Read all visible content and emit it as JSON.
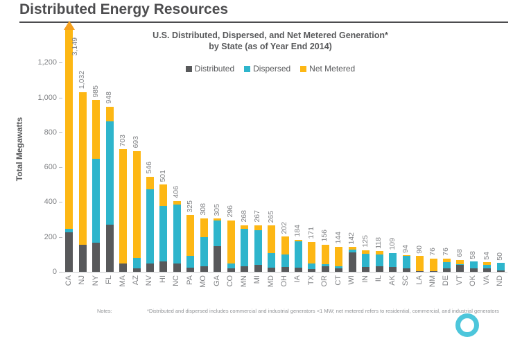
{
  "page": {
    "title": "Distributed Energy Resources",
    "notes_label": "Notes:",
    "notes_text": "*Distributed and dispersed includes commercial and industrial generators <1 MW; net metered refers to residential, commercial, and industrial generators"
  },
  "chart_data": {
    "type": "bar",
    "subtype": "stacked-vertical",
    "title_line1": "U.S. Distributed, Dispersed, and Net Metered Generation*",
    "title_line2": "by State (as of Year End 2014)",
    "ylabel": "Total Megawatts",
    "xlabel": "",
    "ylim": [
      0,
      1400
    ],
    "yticks": [
      0,
      200,
      400,
      600,
      800,
      1000,
      1200
    ],
    "grid": false,
    "legend_position": "top-center",
    "categories": [
      "CA",
      "NJ",
      "NY",
      "FL",
      "MA",
      "AZ",
      "NV",
      "HI",
      "NC",
      "PA",
      "MO",
      "GA",
      "CO",
      "MN",
      "MI",
      "MD",
      "OH",
      "IA",
      "TX",
      "OR",
      "CT",
      "WI",
      "IN",
      "IL",
      "AK",
      "SC",
      "LA",
      "NM",
      "DE",
      "VT",
      "OK",
      "VA",
      "ND"
    ],
    "totals": [
      3149,
      1032,
      985,
      948,
      703,
      693,
      546,
      501,
      406,
      325,
      308,
      305,
      296,
      268,
      267,
      265,
      202,
      184,
      171,
      156,
      144,
      142,
      125,
      118,
      109,
      94,
      90,
      76,
      76,
      68,
      58,
      54,
      50
    ],
    "series": [
      {
        "name": "Distributed",
        "color": "#58595b",
        "values": [
          225,
          155,
          166,
          272,
          49,
          20,
          46,
          60,
          46,
          23,
          33,
          146,
          20,
          33,
          40,
          23,
          27,
          23,
          15,
          31,
          20,
          113,
          27,
          30,
          26,
          20,
          5,
          5,
          20,
          40,
          18,
          20,
          8
        ]
      },
      {
        "name": "Dispersed",
        "color": "#2eb5cc",
        "values": [
          20,
          0,
          482,
          593,
          0,
          60,
          426,
          318,
          340,
          70,
          166,
          147,
          26,
          212,
          199,
          83,
          72,
          151,
          31,
          14,
          12,
          16,
          78,
          70,
          83,
          70,
          0,
          0,
          35,
          4,
          40,
          20,
          42
        ]
      },
      {
        "name": "Net Metered",
        "color": "#fdb714",
        "values": [
          2904,
          877,
          337,
          83,
          654,
          613,
          74,
          123,
          20,
          232,
          109,
          12,
          250,
          23,
          28,
          159,
          103,
          10,
          125,
          111,
          112,
          13,
          20,
          18,
          0,
          4,
          85,
          71,
          21,
          24,
          0,
          14,
          0
        ]
      }
    ],
    "clipped_category": "CA",
    "clip_note": "CA bar exceeds axis; drawn with arrow at 3,149 MW",
    "arrow_color": "#f5a01e"
  },
  "colors": {
    "title_text": "#4d4d4f",
    "axis_text": "#808285",
    "baseline": "#c7c8ca",
    "logo_accent": "#4dc6db"
  }
}
